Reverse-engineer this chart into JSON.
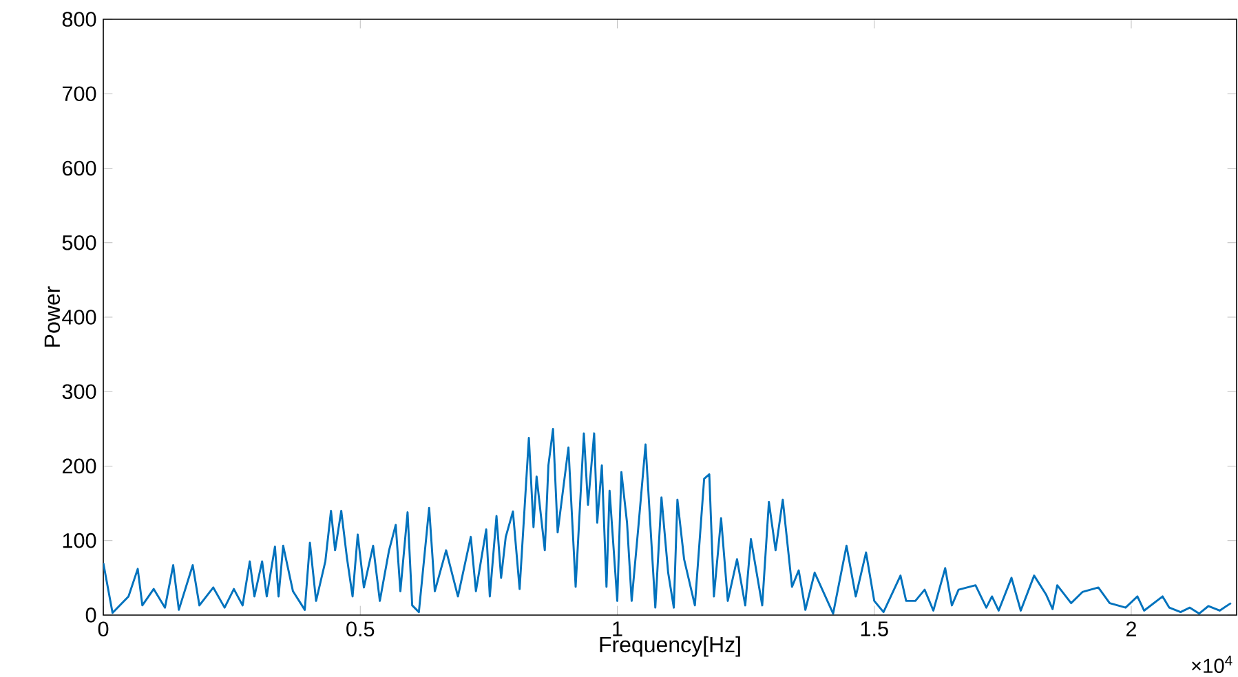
{
  "chart_data": {
    "type": "line",
    "xlabel": "Frequency[Hz]",
    "ylabel": "Power",
    "annotations": [
      "×10$^{4}$"
    ],
    "xlim": [
      0,
      2.205
    ],
    "ylim": [
      0,
      800
    ],
    "xticks": [
      0,
      0.5,
      1,
      1.5,
      2
    ],
    "yticks": [
      0,
      100,
      200,
      300,
      400,
      500,
      600,
      700,
      800
    ],
    "line_style": "solid",
    "marker": "none",
    "series": [
      {
        "color": "#0072bd",
        "x": [
          0,
          0.018,
          0.049,
          0.067,
          0.076,
          0.098,
          0.12,
          0.136,
          0.147,
          0.174,
          0.187,
          0.214,
          0.236,
          0.254,
          0.271,
          0.285,
          0.294,
          0.309,
          0.318,
          0.334,
          0.341,
          0.35,
          0.369,
          0.392,
          0.402,
          0.414,
          0.432,
          0.443,
          0.451,
          0.463,
          0.474,
          0.485,
          0.495,
          0.507,
          0.525,
          0.538,
          0.556,
          0.569,
          0.578,
          0.592,
          0.601,
          0.614,
          0.634,
          0.645,
          0.667,
          0.69,
          0.715,
          0.725,
          0.745,
          0.752,
          0.765,
          0.774,
          0.783,
          0.797,
          0.81,
          0.828,
          0.837,
          0.843,
          0.859,
          0.866,
          0.875,
          0.884,
          0.905,
          0.919,
          0.935,
          0.943,
          0.955,
          0.961,
          0.97,
          0.979,
          0.985,
          1.0,
          1.008,
          1.019,
          1.028,
          1.041,
          1.055,
          1.074,
          1.086,
          1.099,
          1.11,
          1.117,
          1.13,
          1.151,
          1.169,
          1.179,
          1.188,
          1.202,
          1.215,
          1.233,
          1.249,
          1.26,
          1.282,
          1.295,
          1.308,
          1.322,
          1.34,
          1.353,
          1.366,
          1.384,
          1.42,
          1.446,
          1.464,
          1.484,
          1.5,
          1.518,
          1.551,
          1.562,
          1.58,
          1.598,
          1.615,
          1.638,
          1.651,
          1.664,
          1.697,
          1.718,
          1.729,
          1.742,
          1.767,
          1.785,
          1.811,
          1.834,
          1.847,
          1.856,
          1.883,
          1.905,
          1.936,
          1.958,
          1.989,
          2.012,
          2.025,
          2.061,
          2.074,
          2.096,
          2.114,
          2.132,
          2.15,
          2.172,
          2.194
        ],
        "values": [
          70,
          3,
          25,
          62,
          13,
          35,
          10,
          67,
          7,
          67,
          13,
          37,
          10,
          35,
          13,
          72,
          25,
          72,
          25,
          92,
          25,
          93,
          32,
          7,
          97,
          19,
          72,
          140,
          87,
          140,
          77,
          25,
          108,
          37,
          93,
          19,
          87,
          121,
          32,
          138,
          13,
          4,
          144,
          32,
          87,
          25,
          105,
          32,
          115,
          25,
          133,
          50,
          105,
          139,
          35,
          238,
          118,
          186,
          87,
          201,
          250,
          111,
          225,
          38,
          244,
          148,
          244,
          124,
          201,
          38,
          167,
          19,
          192,
          124,
          19,
          118,
          229,
          10,
          158,
          57,
          10,
          155,
          75,
          13,
          183,
          189,
          25,
          130,
          19,
          75,
          13,
          102,
          13,
          152,
          87,
          155,
          38,
          60,
          7,
          57,
          2,
          93,
          25,
          84,
          19,
          4,
          53,
          19,
          19,
          34,
          6,
          63,
          13,
          34,
          40,
          10,
          25,
          6,
          50,
          6,
          53,
          28,
          8,
          40,
          16,
          31,
          37,
          16,
          10,
          25,
          6,
          25,
          10,
          4,
          10,
          2,
          12,
          6,
          16
        ]
      }
    ]
  }
}
